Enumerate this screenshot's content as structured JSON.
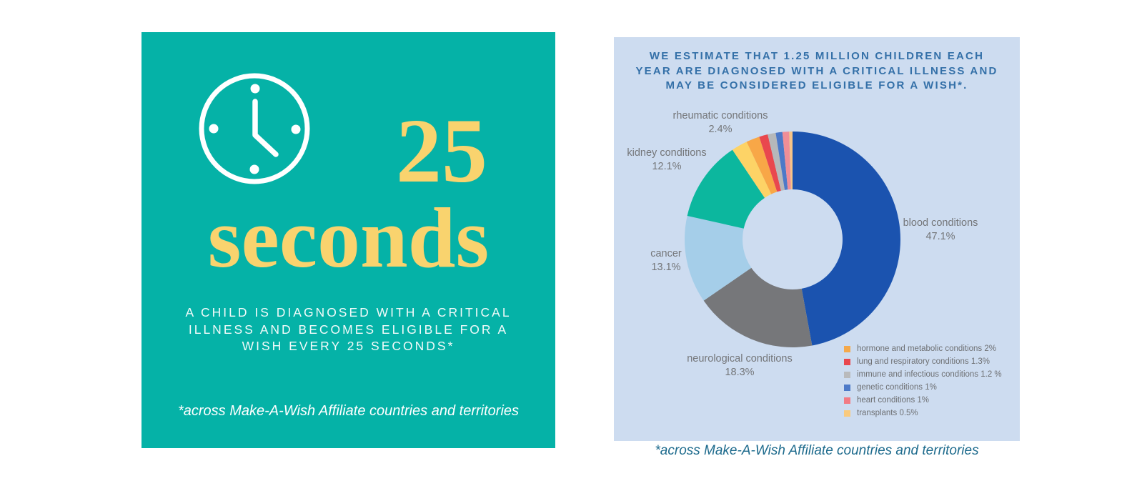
{
  "left_panel": {
    "bg_color": "#05b2a7",
    "accent_color": "#f9d36e",
    "icon": "clock-icon",
    "headline_number": "25",
    "headline_word": "seconds",
    "body": "A CHILD IS DIAGNOSED WITH A CRITICAL\nILLNESS AND BECOMES ELIGIBLE FOR A\nWISH EVERY 25 SECONDS*",
    "footnote": "*across Make-A-Wish Affiliate countries and territories"
  },
  "right_panel": {
    "bg_color": "#cddcf0",
    "title_color": "#3470a8",
    "footnote": "*across Make-A-Wish Affiliate countries and territories"
  },
  "chart_data": {
    "type": "pie",
    "subtype": "donut",
    "title": "WE ESTIMATE THAT 1.25 MILLION CHILDREN EACH\nYEAR ARE DIAGNOSED WITH A CRITICAL ILLNESS AND\nMAY BE CONSIDERED ELIGIBLE FOR A WISH*.",
    "unit": "percent",
    "start_angle_deg": 0,
    "direction": "clockwise",
    "categories": [
      "blood conditions",
      "neurological conditions",
      "cancer",
      "kidney conditions",
      "rheumatic conditions",
      "hormone and metabolic conditions",
      "lung and respiratory conditions",
      "immune and infectious conditions",
      "genetic conditions",
      "heart conditions",
      "transplants"
    ],
    "values": [
      47.1,
      18.3,
      13.1,
      12.1,
      2.4,
      2,
      1.3,
      1.2,
      1,
      1,
      0.5
    ],
    "colors": [
      "#1b53af",
      "#76777a",
      "#a5cee9",
      "#0cb79e",
      "#fdd366",
      "#f8a747",
      "#e9474e",
      "#b6b8ba",
      "#4d79c8",
      "#f08e97",
      "#f7c487"
    ],
    "callouts": [
      {
        "text": "rheumatic conditions\n2.4%"
      },
      {
        "text": "kidney conditions\n12.1%"
      },
      {
        "text": "cancer\n13.1%"
      },
      {
        "text": "neurological conditions\n18.3%"
      },
      {
        "text": "blood conditions\n47.1%"
      }
    ],
    "legend": [
      {
        "color": "#f4a94c",
        "text": "hormone and metabolic conditions 2%"
      },
      {
        "color": "#e9474e",
        "text": "lung and respiratory conditions 1.3%"
      },
      {
        "color": "#b9babc",
        "text": "immune and infectious conditions 1.2 %"
      },
      {
        "color": "#4d7ac8",
        "text": "genetic conditions 1%"
      },
      {
        "color": "#f27b84",
        "text": "heart conditions 1%"
      },
      {
        "color": "#f9ca7e",
        "text": "transplants 0.5%"
      }
    ],
    "legend_position": "bottom-right"
  }
}
